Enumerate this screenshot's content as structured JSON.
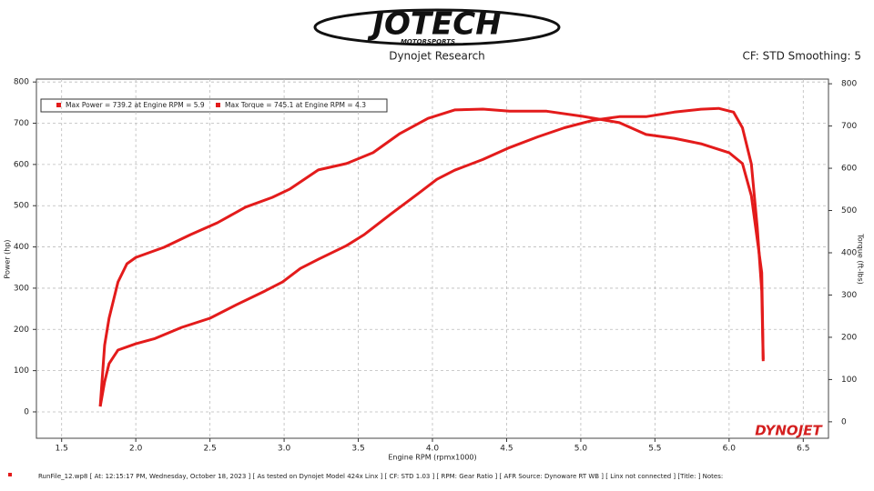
{
  "header": {
    "logo": "JOTECH",
    "logo_sub": "MOTORSPORTS",
    "title": "Dynojet Research",
    "settings": "CF: STD Smoothing: 5"
  },
  "chart_data": {
    "type": "line",
    "xlabel": "Engine RPM (rpmx1000)",
    "ylabel": "Power (hp)",
    "y2label": "Torque (ft-lbs)",
    "brand": "DYNOJET",
    "xlim": [
      1.33,
      6.67
    ],
    "ylim": [
      -64,
      807
    ],
    "y2lim": [
      -39,
      811
    ],
    "xticks": [
      1.5,
      {
        "value": 2,
        "label": "2.0"
      },
      2.5,
      {
        "value": 3,
        "label": "3.0"
      },
      3.5,
      {
        "value": 4,
        "label": "4.0"
      },
      4.5,
      {
        "value": 5,
        "label": "5.0"
      },
      5.5,
      {
        "value": 6,
        "label": "6.0"
      },
      6.5
    ],
    "yticks": [
      0,
      100,
      200,
      300,
      400,
      500,
      600,
      700,
      800
    ],
    "y2ticks": [
      0,
      100,
      200,
      300,
      400,
      500,
      600,
      700,
      800
    ],
    "grid": true,
    "series": [
      {
        "name": "Max Power = 739.2 at Engine RPM = 5.9",
        "color": "#e31b1b",
        "x": [
          1.76,
          1.79,
          1.82,
          1.88,
          2.0,
          2.13,
          2.31,
          2.5,
          2.68,
          2.87,
          2.99,
          3.11,
          3.23,
          3.42,
          3.54,
          3.72,
          3.91,
          4.03,
          4.15,
          4.34,
          4.52,
          4.71,
          4.89,
          5.08,
          5.26,
          5.44,
          5.63,
          5.81,
          5.93,
          6.03,
          6.09,
          6.15,
          6.19,
          6.22,
          6.23
        ],
        "values": [
          13,
          73,
          117,
          150,
          165,
          178,
          205,
          227,
          260,
          293,
          315,
          348,
          370,
          403,
          430,
          480,
          531,
          564,
          586,
          612,
          641,
          667,
          689,
          707,
          716,
          716,
          727,
          734,
          736,
          727,
          689,
          601,
          447,
          293,
          123
        ]
      },
      {
        "name": "Max Torque = 745.1 at Engine RPM = 4.3",
        "color": "#e31b1b",
        "axis": "y2",
        "x": [
          1.76,
          1.79,
          1.82,
          1.88,
          1.94,
          2.0,
          2.19,
          2.37,
          2.55,
          2.74,
          2.92,
          3.04,
          3.23,
          3.42,
          3.6,
          3.78,
          3.97,
          4.15,
          4.34,
          4.52,
          4.77,
          5.01,
          5.26,
          5.44,
          5.63,
          5.81,
          6.0,
          6.09,
          6.15,
          6.22,
          6.23
        ],
        "values": [
          37,
          181,
          245,
          331,
          374,
          389,
          413,
          443,
          471,
          508,
          531,
          551,
          596,
          611,
          637,
          682,
          718,
          738,
          740,
          735,
          735,
          723,
          708,
          680,
          671,
          658,
          637,
          611,
          535,
          353,
          148
        ]
      }
    ]
  },
  "footer": "RunFile_12.wp8 [ At: 12:15:17 PM, Wednesday, October 18, 2023 ] [ As tested on Dynojet Model 424x Linx ] [ CF: STD 1.03 ] [ RPM: Gear Ratio ] [ AFR Source: Dynoware RT WB ] [ Linx not connected ] [Title: ]  Notes:"
}
